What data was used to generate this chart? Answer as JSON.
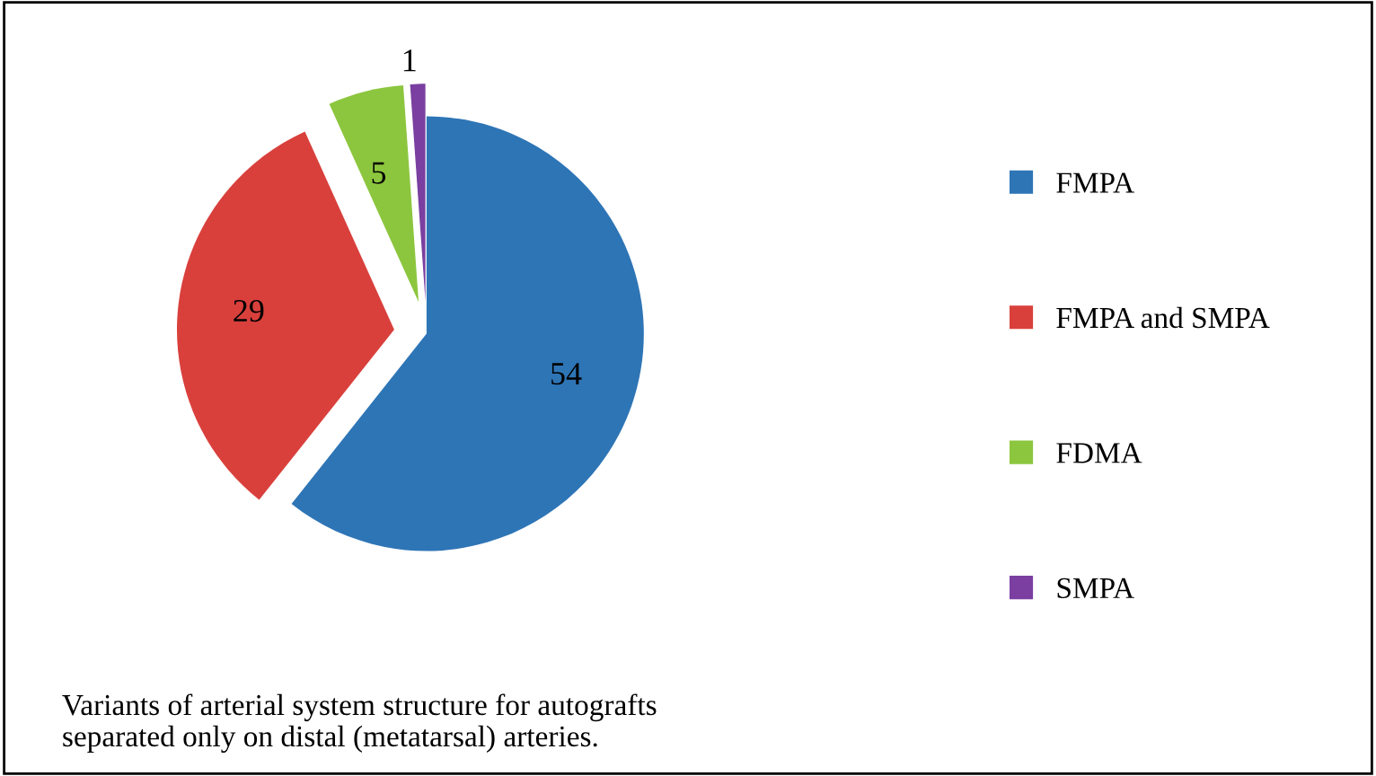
{
  "chart_data": {
    "type": "pie",
    "categories": [
      "FMPA",
      "FMPA and SMPA",
      "FDMA",
      "SMPA"
    ],
    "values": [
      54,
      29,
      5,
      1
    ],
    "colors": [
      "#2e75b6",
      "#d9403c",
      "#8cc63e",
      "#7a3fa0"
    ],
    "data_labels": true,
    "legend": "right",
    "annotations": [
      "Variants of arterial system structure for autografts\nseparated only on distal (metatarsal) arteries."
    ]
  }
}
